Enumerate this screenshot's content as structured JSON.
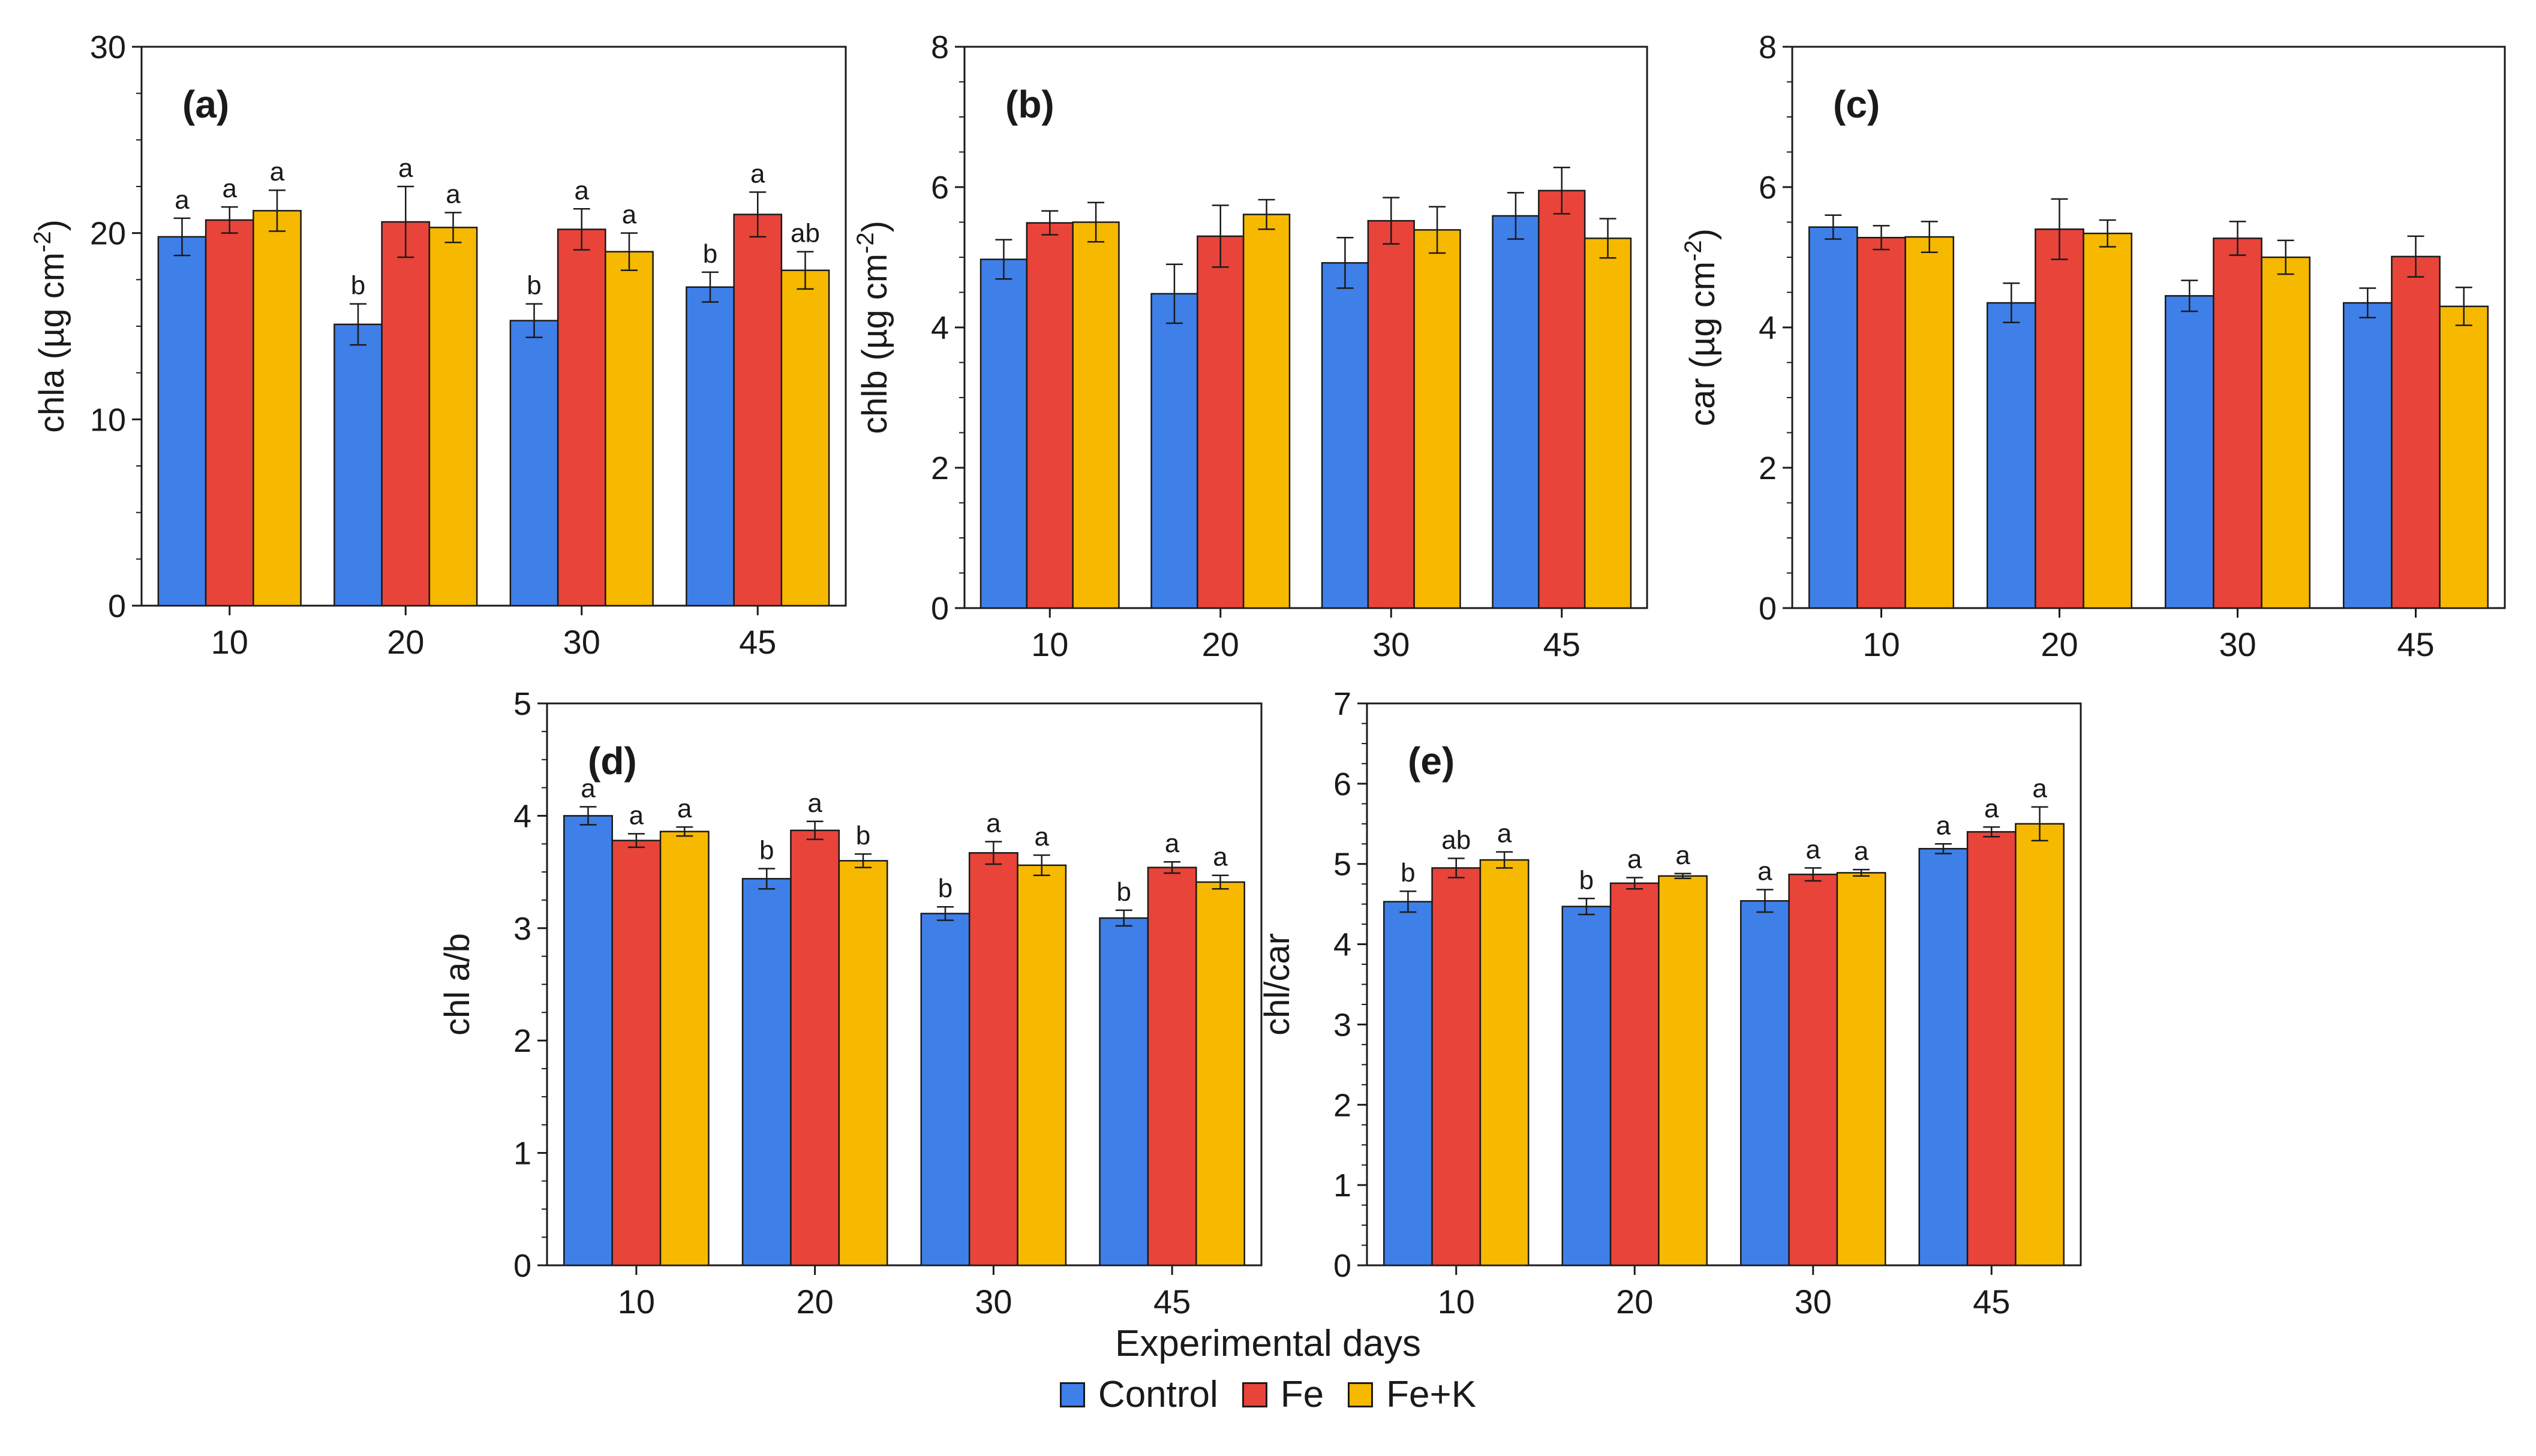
{
  "figure": {
    "x_axis_title": "Experimental days",
    "legend": [
      {
        "label": "Control",
        "color": "#3F7FE8"
      },
      {
        "label": "Fe",
        "color": "#E8443A"
      },
      {
        "label": "Fe+K",
        "color": "#F7B800"
      }
    ]
  },
  "chart_data": [
    {
      "panel": "(a)",
      "type": "bar",
      "ylabel": "chla (µg cm",
      "ylabel_exp": "-2",
      "ylabel_end": ")",
      "ylim": [
        0,
        30
      ],
      "yticks": [
        0,
        10,
        20,
        30
      ],
      "categories": [
        "10",
        "20",
        "30",
        "45"
      ],
      "series": [
        {
          "name": "Control",
          "values": [
            19.8,
            15.1,
            15.3,
            17.1
          ],
          "errors": [
            1.0,
            1.1,
            0.9,
            0.8
          ],
          "letters": [
            "a",
            "b",
            "b",
            "b"
          ]
        },
        {
          "name": "Fe",
          "values": [
            20.7,
            20.6,
            20.2,
            21.0
          ],
          "errors": [
            0.7,
            1.9,
            1.1,
            1.2
          ],
          "letters": [
            "a",
            "a",
            "a",
            "a"
          ]
        },
        {
          "name": "Fe+K",
          "values": [
            21.2,
            20.3,
            19.0,
            18.0
          ],
          "errors": [
            1.1,
            0.8,
            1.0,
            1.0
          ],
          "letters": [
            "a",
            "a",
            "a",
            "ab"
          ]
        }
      ]
    },
    {
      "panel": "(b)",
      "type": "bar",
      "ylabel": "chlb (µg cm",
      "ylabel_exp": "-2",
      "ylabel_end": ")",
      "ylim": [
        0,
        8
      ],
      "yticks": [
        0,
        2,
        4,
        6,
        8
      ],
      "categories": [
        "10",
        "20",
        "30",
        "45"
      ],
      "series": [
        {
          "name": "Control",
          "values": [
            4.97,
            4.48,
            4.92,
            5.59
          ],
          "errors": [
            0.28,
            0.42,
            0.36,
            0.33
          ],
          "letters": [
            "",
            "",
            "",
            ""
          ]
        },
        {
          "name": "Fe",
          "values": [
            5.49,
            5.3,
            5.52,
            5.95
          ],
          "errors": [
            0.17,
            0.44,
            0.33,
            0.33
          ],
          "letters": [
            "",
            "",
            "",
            ""
          ]
        },
        {
          "name": "Fe+K",
          "values": [
            5.5,
            5.61,
            5.39,
            5.27
          ],
          "errors": [
            0.28,
            0.21,
            0.33,
            0.28
          ],
          "letters": [
            "",
            "",
            "",
            ""
          ]
        }
      ]
    },
    {
      "panel": "(c)",
      "type": "bar",
      "ylabel": "car (µg cm",
      "ylabel_exp": "-2",
      "ylabel_end": ")",
      "ylim": [
        0,
        8
      ],
      "yticks": [
        0,
        2,
        4,
        6,
        8
      ],
      "categories": [
        "10",
        "20",
        "30",
        "45"
      ],
      "series": [
        {
          "name": "Control",
          "values": [
            5.43,
            4.35,
            4.45,
            4.35
          ],
          "errors": [
            0.17,
            0.28,
            0.22,
            0.21
          ],
          "letters": [
            "",
            "",
            "",
            ""
          ]
        },
        {
          "name": "Fe",
          "values": [
            5.28,
            5.4,
            5.27,
            5.01
          ],
          "errors": [
            0.17,
            0.43,
            0.24,
            0.29
          ],
          "letters": [
            "",
            "",
            "",
            ""
          ]
        },
        {
          "name": "Fe+K",
          "values": [
            5.29,
            5.34,
            5.0,
            4.3
          ],
          "errors": [
            0.22,
            0.19,
            0.24,
            0.27
          ],
          "letters": [
            "",
            "",
            "",
            ""
          ]
        }
      ]
    },
    {
      "panel": "(d)",
      "type": "bar",
      "ylabel": "chl a/b",
      "ylabel_exp": "",
      "ylabel_end": "",
      "ylim": [
        0,
        5
      ],
      "yticks": [
        0,
        1,
        2,
        3,
        4,
        5
      ],
      "categories": [
        "10",
        "20",
        "30",
        "45"
      ],
      "series": [
        {
          "name": "Control",
          "values": [
            4.0,
            3.44,
            3.13,
            3.09
          ],
          "errors": [
            0.08,
            0.09,
            0.06,
            0.07
          ],
          "letters": [
            "a",
            "b",
            "b",
            "b"
          ]
        },
        {
          "name": "Fe",
          "values": [
            3.78,
            3.87,
            3.67,
            3.54
          ],
          "errors": [
            0.06,
            0.08,
            0.1,
            0.05
          ],
          "letters": [
            "a",
            "a",
            "a",
            "a"
          ]
        },
        {
          "name": "Fe+K",
          "values": [
            3.86,
            3.6,
            3.56,
            3.41
          ],
          "errors": [
            0.04,
            0.06,
            0.09,
            0.06
          ],
          "letters": [
            "a",
            "b",
            "a",
            "a"
          ]
        }
      ]
    },
    {
      "panel": "(e)",
      "type": "bar",
      "ylabel": "chl/car",
      "ylabel_exp": "",
      "ylabel_end": "",
      "ylim": [
        0,
        7
      ],
      "yticks": [
        0,
        1,
        2,
        3,
        4,
        5,
        6,
        7
      ],
      "categories": [
        "10",
        "20",
        "30",
        "45"
      ],
      "series": [
        {
          "name": "Control",
          "values": [
            4.53,
            4.47,
            4.54,
            5.19
          ],
          "errors": [
            0.13,
            0.1,
            0.14,
            0.06
          ],
          "letters": [
            "b",
            "b",
            "a",
            "a"
          ]
        },
        {
          "name": "Fe",
          "values": [
            4.95,
            4.76,
            4.87,
            5.4
          ],
          "errors": [
            0.12,
            0.07,
            0.08,
            0.06
          ],
          "letters": [
            "ab",
            "a",
            "a",
            "a"
          ]
        },
        {
          "name": "Fe+K",
          "values": [
            5.05,
            4.85,
            4.89,
            5.5
          ],
          "errors": [
            0.1,
            0.03,
            0.04,
            0.21
          ],
          "letters": [
            "a",
            "a",
            "a",
            "a"
          ]
        }
      ]
    }
  ]
}
